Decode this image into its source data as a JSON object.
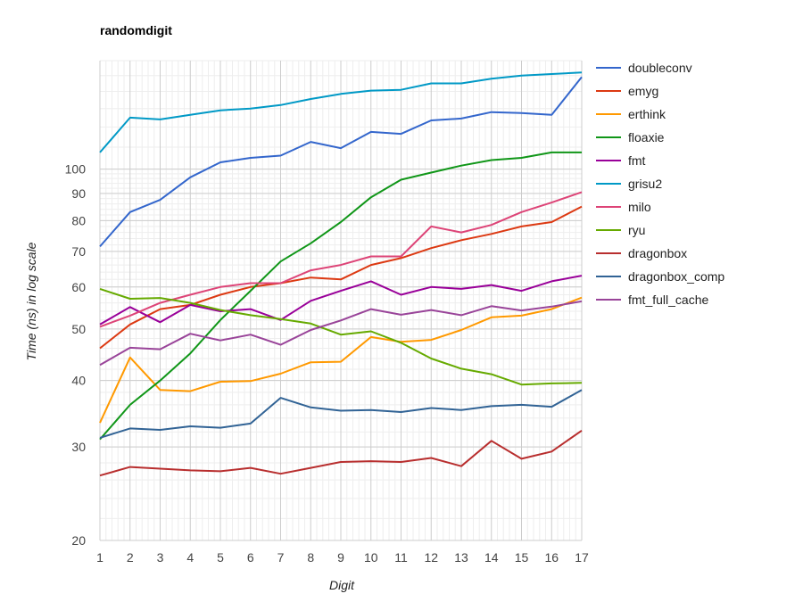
{
  "chart_data": {
    "type": "line",
    "title": "randomdigit",
    "xlabel": "Digit",
    "ylabel": "Time (ns) in log scale",
    "yscale": "log",
    "ylim": [
      20,
      160
    ],
    "xlim": [
      1,
      17
    ],
    "grid": true,
    "legend_position": "right",
    "x": [
      1,
      2,
      3,
      4,
      5,
      6,
      7,
      8,
      9,
      10,
      11,
      12,
      13,
      14,
      15,
      16,
      17
    ],
    "x_tick_labels": [
      "1",
      "2",
      "3",
      "4",
      "5",
      "6",
      "7",
      "8",
      "9",
      "10",
      "11",
      "12",
      "13",
      "14",
      "15",
      "16",
      "17"
    ],
    "y_ticks": [
      20,
      30,
      40,
      50,
      60,
      70,
      80,
      90,
      100
    ],
    "y_tick_labels": [
      "20",
      "30",
      "40",
      "50",
      "60",
      "70",
      "80",
      "90",
      "100"
    ],
    "series": [
      {
        "name": "doubleconv",
        "color": "#3366cc",
        "values": [
          71.5,
          83,
          87.5,
          96.5,
          103,
          105,
          106,
          112.5,
          109.5,
          117.5,
          116.5,
          123.5,
          124.5,
          128,
          127.5,
          126.5,
          149
        ]
      },
      {
        "name": "emyg",
        "color": "#dc3912",
        "values": [
          46,
          51,
          54.5,
          55.5,
          58,
          60,
          61,
          62.5,
          62,
          66,
          68,
          71,
          73.5,
          75.5,
          78,
          79.5,
          85
        ]
      },
      {
        "name": "erthink",
        "color": "#ff9900",
        "values": [
          33.3,
          44.2,
          38.4,
          38.2,
          39.8,
          39.9,
          41.2,
          43.3,
          43.4,
          48.3,
          47.3,
          47.7,
          49.8,
          52.6,
          53,
          54.5,
          57.3
        ]
      },
      {
        "name": "floaxie",
        "color": "#109618",
        "values": [
          31,
          36,
          40,
          45,
          52,
          59,
          67,
          72.5,
          79.5,
          88.5,
          95.5,
          98.5,
          101.5,
          104,
          105,
          107.5,
          107.5
        ]
      },
      {
        "name": "fmt",
        "color": "#990099",
        "values": [
          51,
          55,
          51.5,
          55.5,
          54,
          54.5,
          52,
          56.5,
          59,
          61.5,
          58,
          60,
          59.5,
          60.5,
          59,
          61.5,
          63
        ]
      },
      {
        "name": "grisu2",
        "color": "#0099c6",
        "values": [
          107.5,
          125,
          124,
          126.5,
          129,
          130,
          132,
          135.5,
          138.5,
          140.5,
          141,
          145,
          145,
          148,
          150,
          151,
          152
        ]
      },
      {
        "name": "milo",
        "color": "#dd4477",
        "values": [
          50.5,
          53,
          56,
          58,
          60,
          61,
          61,
          64.5,
          66,
          68.5,
          68.5,
          78,
          76,
          78.5,
          83,
          86.5,
          90.5
        ]
      },
      {
        "name": "ryu",
        "color": "#66aa00",
        "values": [
          59.5,
          57,
          57.2,
          56,
          54.3,
          53.1,
          52.2,
          51.2,
          48.8,
          49.5,
          47.1,
          44,
          42.1,
          41.1,
          39.3,
          39.5,
          39.6
        ]
      },
      {
        "name": "dragonbox",
        "color": "#b82e2e",
        "values": [
          26.5,
          27.5,
          27.3,
          27.1,
          27,
          27.4,
          26.7,
          27.4,
          28.1,
          28.2,
          28.1,
          28.6,
          27.6,
          30.8,
          28.5,
          29.4,
          32.2
        ]
      },
      {
        "name": "dragonbox_comp",
        "color": "#316395",
        "values": [
          31.2,
          32.5,
          32.3,
          32.8,
          32.6,
          33.2,
          37.1,
          35.6,
          35.1,
          35.2,
          34.9,
          35.5,
          35.2,
          35.8,
          36,
          35.7,
          38.4
        ]
      },
      {
        "name": "fmt_full_cache",
        "color": "#994499",
        "values": [
          42.8,
          46.1,
          45.8,
          49,
          47.6,
          48.8,
          46.7,
          49.8,
          51.9,
          54.5,
          53.2,
          54.3,
          53.1,
          55.2,
          54.2,
          55.1,
          56.4
        ]
      }
    ]
  }
}
